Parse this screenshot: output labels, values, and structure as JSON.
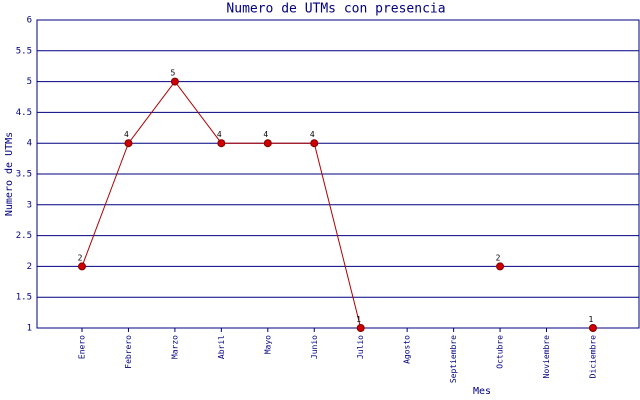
{
  "chart_data": {
    "type": "line",
    "title": "Numero de UTMs con presencia",
    "x_label": "Mes",
    "y_label": "Numero de UTMs",
    "categories": [
      "Enero",
      "Febrero",
      "Marzo",
      "Abril",
      "Mayo",
      "Junio",
      "Julio",
      "Agosto",
      "Septiembre",
      "Octubre",
      "Noviembre",
      "Diciembre"
    ],
    "values": [
      2,
      4,
      5,
      4,
      4,
      4,
      1,
      null,
      null,
      2,
      null,
      1
    ],
    "color": "#b00000",
    "marker_color": "#d00000",
    "ylim": [
      1,
      6
    ],
    "yticks": [
      1,
      1.5,
      2,
      2.5,
      3,
      3.5,
      4,
      4.5,
      5,
      5.5,
      6
    ],
    "grid": true,
    "grid_color": "#000080"
  }
}
